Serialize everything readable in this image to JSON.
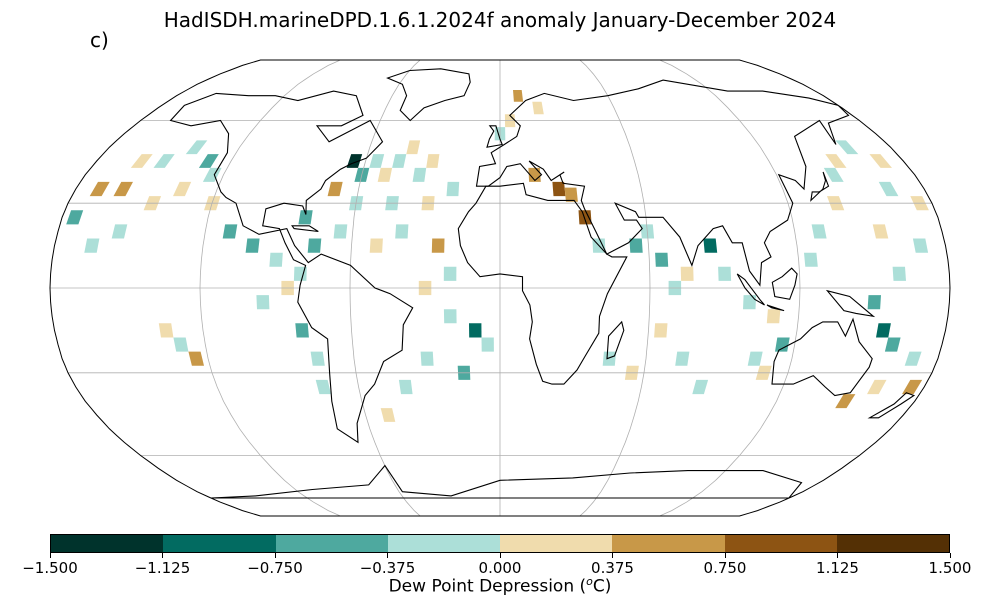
{
  "title": "HadISDH.marineDPD.1.6.1.2024f anomaly January-December 2024",
  "panel_label": "c)",
  "colorbar": {
    "label_prefix": "Dew Point Depression (",
    "label_sup": "o",
    "label_suffix": "C)",
    "ticks": [
      "−1.500",
      "−1.125",
      "−0.750",
      "−0.375",
      "0.000",
      "0.375",
      "0.750",
      "1.125",
      "1.500"
    ],
    "colors": [
      "#00332c",
      "#026b61",
      "#4ea99f",
      "#acdfd8",
      "#f0dcad",
      "#c89848",
      "#8d5413",
      "#543005"
    ]
  },
  "map_data": {
    "projection": "Robinson",
    "gridlines": "lat/lon graticule",
    "cells": [
      {
        "lon": -170,
        "lat": 35,
        "level": 5
      },
      {
        "lon": -160,
        "lat": 45,
        "level": 4
      },
      {
        "lon": -150,
        "lat": 45,
        "level": 3
      },
      {
        "lon": -140,
        "lat": 50,
        "level": 3
      },
      {
        "lon": -130,
        "lat": 45,
        "level": 2
      },
      {
        "lon": -125,
        "lat": 40,
        "level": 3
      },
      {
        "lon": -135,
        "lat": 35,
        "level": 4
      },
      {
        "lon": -145,
        "lat": 30,
        "level": 4
      },
      {
        "lon": -160,
        "lat": 35,
        "level": 5
      },
      {
        "lon": -175,
        "lat": 25,
        "level": 2
      },
      {
        "lon": -155,
        "lat": 20,
        "level": 3
      },
      {
        "lon": -165,
        "lat": 15,
        "level": 3
      },
      {
        "lon": -120,
        "lat": 30,
        "level": 4
      },
      {
        "lon": -110,
        "lat": 20,
        "level": 2
      },
      {
        "lon": -100,
        "lat": 15,
        "level": 2
      },
      {
        "lon": -90,
        "lat": 10,
        "level": 3
      },
      {
        "lon": -80,
        "lat": 5,
        "level": 3
      },
      {
        "lon": -85,
        "lat": 0,
        "level": 4
      },
      {
        "lon": -95,
        "lat": -5,
        "level": 3
      },
      {
        "lon": -80,
        "lat": -15,
        "level": 2
      },
      {
        "lon": -75,
        "lat": -25,
        "level": 3
      },
      {
        "lon": -75,
        "lat": -35,
        "level": 3
      },
      {
        "lon": -130,
        "lat": -20,
        "level": 3
      },
      {
        "lon": -135,
        "lat": -15,
        "level": 4
      },
      {
        "lon": -125,
        "lat": -25,
        "level": 5
      },
      {
        "lon": -65,
        "lat": 45,
        "level": 0
      },
      {
        "lon": -60,
        "lat": 40,
        "level": 2
      },
      {
        "lon": -55,
        "lat": 45,
        "level": 3
      },
      {
        "lon": -50,
        "lat": 40,
        "level": 4
      },
      {
        "lon": -45,
        "lat": 45,
        "level": 3
      },
      {
        "lon": -40,
        "lat": 50,
        "level": 4
      },
      {
        "lon": -35,
        "lat": 40,
        "level": 3
      },
      {
        "lon": -30,
        "lat": 45,
        "level": 4
      },
      {
        "lon": -70,
        "lat": 35,
        "level": 5
      },
      {
        "lon": -60,
        "lat": 30,
        "level": 3
      },
      {
        "lon": -45,
        "lat": 30,
        "level": 3
      },
      {
        "lon": -30,
        "lat": 30,
        "level": 4
      },
      {
        "lon": -20,
        "lat": 35,
        "level": 3
      },
      {
        "lon": -80,
        "lat": 25,
        "level": 2
      },
      {
        "lon": -65,
        "lat": 20,
        "level": 3
      },
      {
        "lon": -75,
        "lat": 15,
        "level": 2
      },
      {
        "lon": -50,
        "lat": 15,
        "level": 4
      },
      {
        "lon": -40,
        "lat": 20,
        "level": 3
      },
      {
        "lon": -25,
        "lat": 15,
        "level": 5
      },
      {
        "lon": -20,
        "lat": 5,
        "level": 3
      },
      {
        "lon": -30,
        "lat": 0,
        "level": 4
      },
      {
        "lon": -20,
        "lat": -10,
        "level": 3
      },
      {
        "lon": -10,
        "lat": -15,
        "level": 1
      },
      {
        "lon": -5,
        "lat": -20,
        "level": 3
      },
      {
        "lon": -30,
        "lat": -25,
        "level": 3
      },
      {
        "lon": -40,
        "lat": -35,
        "level": 3
      },
      {
        "lon": -15,
        "lat": -30,
        "level": 2
      },
      {
        "lon": -50,
        "lat": -45,
        "level": 4
      },
      {
        "lon": 0,
        "lat": 55,
        "level": 3
      },
      {
        "lon": 5,
        "lat": 60,
        "level": 4
      },
      {
        "lon": 10,
        "lat": 70,
        "level": 5
      },
      {
        "lon": 20,
        "lat": 65,
        "level": 4
      },
      {
        "lon": 15,
        "lat": 40,
        "level": 5
      },
      {
        "lon": 25,
        "lat": 35,
        "level": 6
      },
      {
        "lon": 30,
        "lat": 33,
        "level": 5
      },
      {
        "lon": 35,
        "lat": 25,
        "level": 6
      },
      {
        "lon": 40,
        "lat": 15,
        "level": 3
      },
      {
        "lon": 55,
        "lat": 15,
        "level": 2
      },
      {
        "lon": 60,
        "lat": 20,
        "level": 3
      },
      {
        "lon": 65,
        "lat": 10,
        "level": 2
      },
      {
        "lon": 70,
        "lat": 0,
        "level": 3
      },
      {
        "lon": 75,
        "lat": 5,
        "level": 4
      },
      {
        "lon": 85,
        "lat": 15,
        "level": 1
      },
      {
        "lon": 90,
        "lat": 5,
        "level": 3
      },
      {
        "lon": 65,
        "lat": -15,
        "level": 4
      },
      {
        "lon": 75,
        "lat": -25,
        "level": 3
      },
      {
        "lon": 55,
        "lat": -30,
        "level": 4
      },
      {
        "lon": 45,
        "lat": -25,
        "level": 3
      },
      {
        "lon": 85,
        "lat": -35,
        "level": 3
      },
      {
        "lon": 100,
        "lat": -5,
        "level": 3
      },
      {
        "lon": 110,
        "lat": -10,
        "level": 4
      },
      {
        "lon": 115,
        "lat": -20,
        "level": 2
      },
      {
        "lon": 105,
        "lat": -25,
        "level": 3
      },
      {
        "lon": 110,
        "lat": -30,
        "level": 4
      },
      {
        "lon": 125,
        "lat": 10,
        "level": 3
      },
      {
        "lon": 130,
        "lat": 20,
        "level": 3
      },
      {
        "lon": 140,
        "lat": 30,
        "level": 4
      },
      {
        "lon": 145,
        "lat": 40,
        "level": 3
      },
      {
        "lon": 150,
        "lat": 45,
        "level": 4
      },
      {
        "lon": 160,
        "lat": 50,
        "level": 3
      },
      {
        "lon": 170,
        "lat": 45,
        "level": 4
      },
      {
        "lon": 165,
        "lat": 35,
        "level": 3
      },
      {
        "lon": 175,
        "lat": 30,
        "level": 4
      },
      {
        "lon": 155,
        "lat": 20,
        "level": 4
      },
      {
        "lon": 170,
        "lat": 15,
        "level": 3
      },
      {
        "lon": 160,
        "lat": 5,
        "level": 3
      },
      {
        "lon": 150,
        "lat": -5,
        "level": 2
      },
      {
        "lon": 155,
        "lat": -15,
        "level": 1
      },
      {
        "lon": 160,
        "lat": -20,
        "level": 2
      },
      {
        "lon": 170,
        "lat": -25,
        "level": 3
      },
      {
        "lon": 175,
        "lat": -35,
        "level": 5
      },
      {
        "lon": 160,
        "lat": -35,
        "level": 4
      },
      {
        "lon": 150,
        "lat": -40,
        "level": 5
      }
    ]
  }
}
